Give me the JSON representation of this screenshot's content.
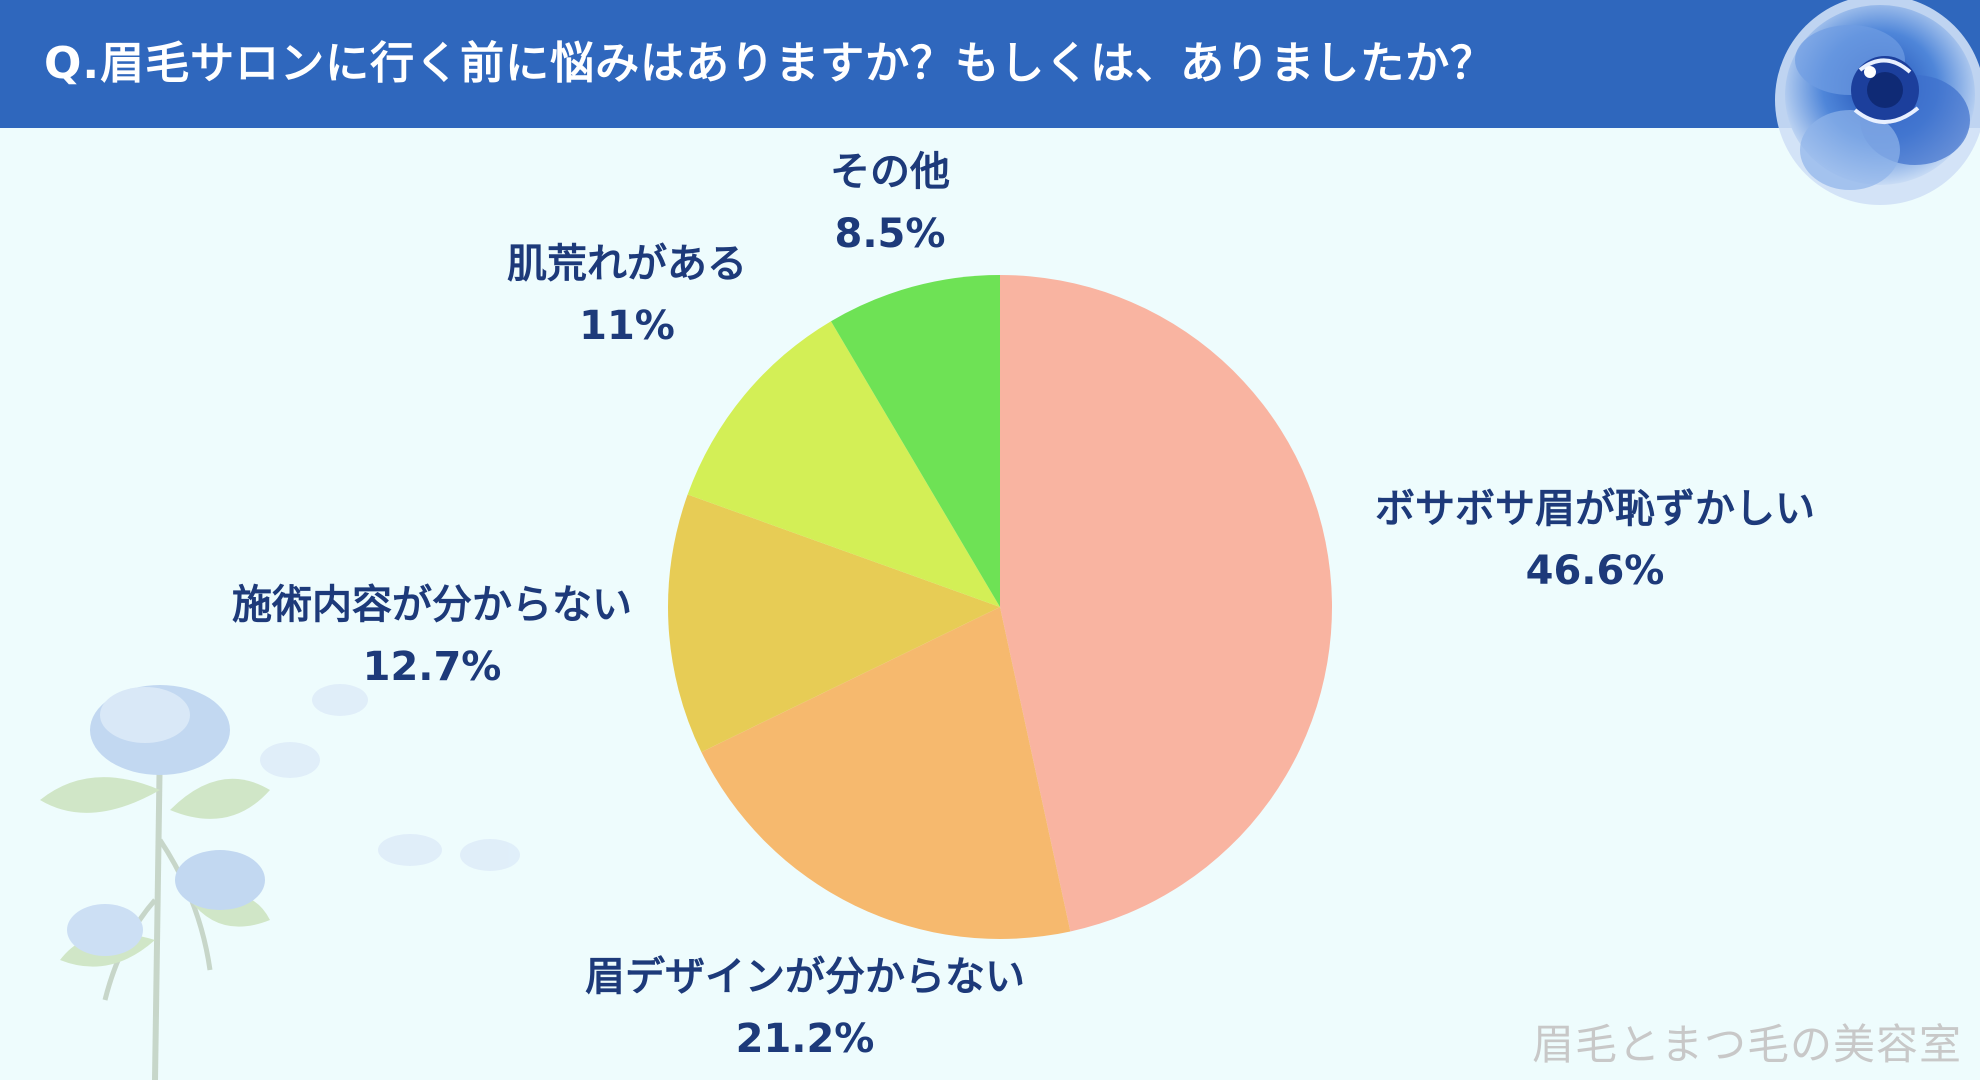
{
  "header": {
    "title": "Q.眉毛サロンに行く前に悩みはありますか？もしくは、ありましたか？"
  },
  "chart_data": {
    "type": "pie",
    "slices": [
      {
        "label": "ボサボサ眉が恥ずかしい",
        "value": 46.6,
        "display": "46.6%",
        "color": "#f9b4a1"
      },
      {
        "label": "眉デザインが分からない",
        "value": 21.2,
        "display": "21.2%",
        "color": "#f6b96e"
      },
      {
        "label": "施術内容が分からない",
        "value": 12.7,
        "display": "12.7%",
        "color": "#e7cc55"
      },
      {
        "label": "肌荒れがある",
        "value": 11,
        "display": "11%",
        "color": "#d3ef56"
      },
      {
        "label": "その他",
        "value": 8.5,
        "display": "8.5%",
        "color": "#6ee255"
      }
    ],
    "start": "12 o'clock",
    "direction": "clockwise"
  },
  "watermark": "眉毛とまつ毛の美容室"
}
